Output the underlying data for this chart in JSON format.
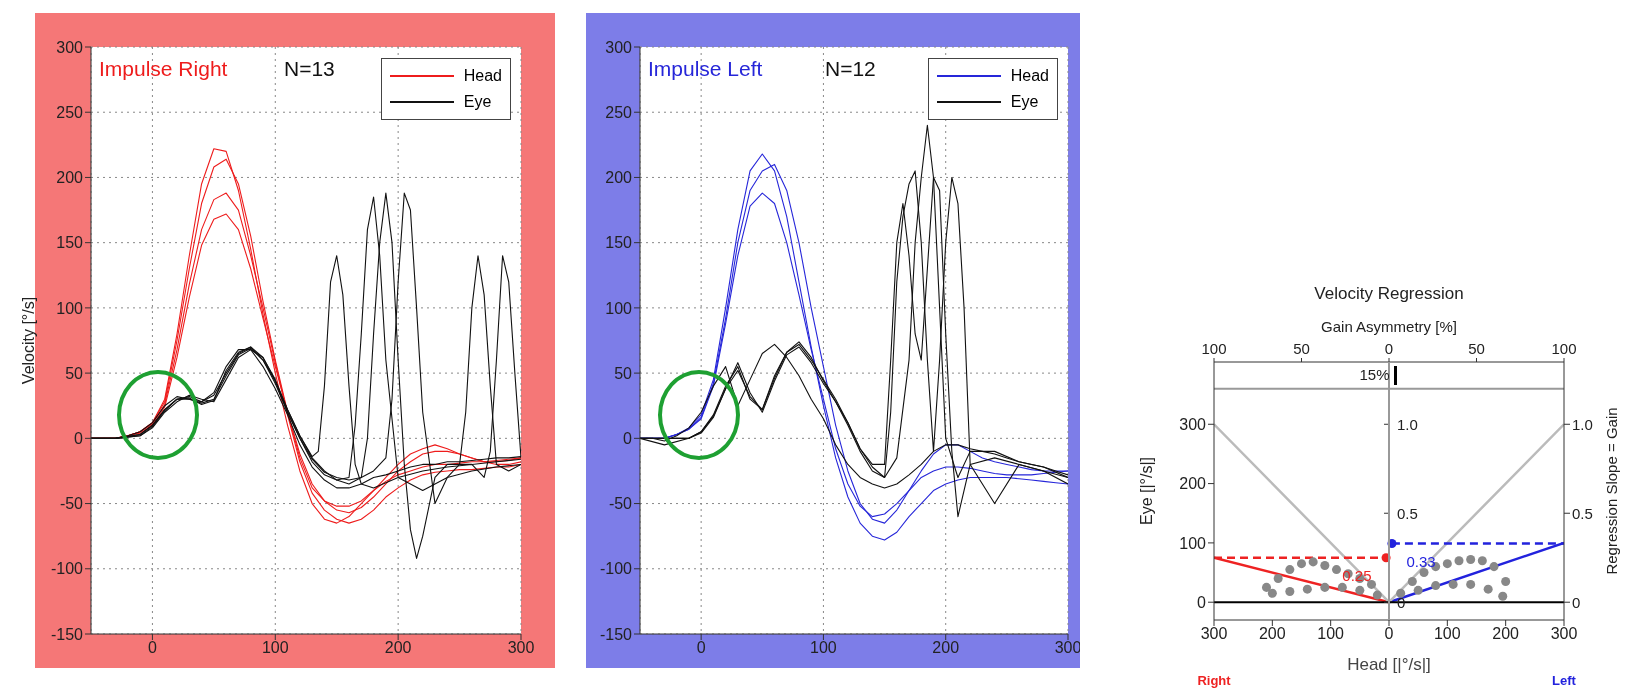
{
  "chart_data": [
    {
      "type": "line",
      "title": "Impulse Right",
      "annotations": [
        "N=13"
      ],
      "ylabel": "Velocity [°/s]",
      "xlim": [
        -50,
        300
      ],
      "xticks": [
        0,
        100,
        200,
        300
      ],
      "ylim": [
        -150,
        300
      ],
      "yticks": [
        -150,
        -100,
        -50,
        0,
        50,
        100,
        150,
        200,
        250,
        300
      ],
      "grid": true,
      "legend": "top right",
      "marker": "none",
      "x": [
        -50,
        -40,
        -30,
        -20,
        -10,
        0,
        10,
        20,
        30,
        40,
        50,
        60,
        70,
        80,
        90,
        100,
        110,
        120,
        130,
        140,
        150,
        160,
        170,
        180,
        190,
        200,
        210,
        220,
        230,
        240,
        250,
        260,
        270,
        280,
        290,
        300
      ],
      "series": [
        {
          "name": "Head",
          "color": "#ee1c1c",
          "values": [
            0,
            0,
            0,
            2,
            5,
            12,
            30,
            80,
            140,
            195,
            222,
            220,
            190,
            145,
            95,
            50,
            10,
            -25,
            -50,
            -62,
            -65,
            -60,
            -50,
            -40,
            -33,
            -28,
            -25,
            -22,
            -20,
            -20,
            -19,
            -18,
            -18,
            -17,
            -16,
            -15
          ]
        },
        {
          "color": "#ee1c1c",
          "values": [
            0,
            0,
            0,
            2,
            5,
            12,
            28,
            75,
            130,
            180,
            208,
            214,
            195,
            155,
            105,
            60,
            20,
            -15,
            -38,
            -48,
            -52,
            -52,
            -48,
            -40,
            -30,
            -20,
            -12,
            -8,
            -5,
            -8,
            -12,
            -15,
            -18,
            -18,
            -17,
            -15
          ]
        },
        {
          "color": "#ee1c1c",
          "values": [
            0,
            0,
            0,
            2,
            5,
            11,
            26,
            68,
            118,
            160,
            183,
            188,
            175,
            140,
            100,
            58,
            18,
            -18,
            -42,
            -55,
            -62,
            -65,
            -62,
            -55,
            -45,
            -38,
            -32,
            -28,
            -26,
            -25,
            -24,
            -24,
            -23,
            -22,
            -22,
            -20
          ]
        },
        {
          "color": "#ee1c1c",
          "values": [
            0,
            0,
            0,
            2,
            4,
            10,
            24,
            62,
            108,
            148,
            168,
            172,
            160,
            130,
            92,
            55,
            20,
            -12,
            -35,
            -48,
            -55,
            -57,
            -53,
            -45,
            -35,
            -25,
            -18,
            -12,
            -10,
            -10,
            -12,
            -15,
            -18,
            -20,
            -20,
            -18
          ]
        },
        {
          "name": "Eye",
          "color": "#111111",
          "values": [
            0,
            0,
            0,
            2,
            5,
            12,
            25,
            32,
            30,
            28,
            35,
            55,
            68,
            68,
            55,
            38,
            18,
            -5,
            -22,
            -32,
            -38,
            -38,
            -35,
            -30,
            -28,
            -25,
            -22,
            -20,
            -20,
            -18,
            -18,
            -17,
            -16,
            -15,
            -15,
            -14
          ]
        },
        {
          "color": "#111111",
          "x": [
            -50,
            -30,
            -10,
            0,
            10,
            20,
            30,
            40,
            50,
            60,
            70,
            80,
            90,
            100,
            110,
            120,
            130,
            140,
            150,
            160,
            165,
            170,
            175,
            180,
            185,
            190,
            200,
            220,
            240,
            260,
            280,
            300
          ],
          "values": [
            0,
            0,
            3,
            10,
            22,
            30,
            32,
            28,
            33,
            50,
            65,
            70,
            60,
            42,
            20,
            0,
            -18,
            -28,
            -32,
            -30,
            10,
            80,
            160,
            185,
            140,
            60,
            -30,
            -40,
            -30,
            -25,
            -22,
            -20
          ]
        },
        {
          "color": "#111111",
          "x": [
            -50,
            -30,
            -10,
            0,
            10,
            20,
            30,
            40,
            50,
            60,
            70,
            80,
            90,
            100,
            110,
            120,
            130,
            140,
            150,
            160,
            170,
            175,
            180,
            185,
            190,
            195,
            200,
            205,
            210,
            215,
            220,
            230,
            240,
            260,
            280,
            300
          ],
          "values": [
            0,
            0,
            2,
            8,
            20,
            28,
            33,
            30,
            28,
            45,
            62,
            68,
            62,
            45,
            22,
            2,
            -15,
            -25,
            -32,
            -35,
            -30,
            0,
            80,
            150,
            188,
            150,
            60,
            -20,
            -70,
            -92,
            -75,
            -30,
            -20,
            -20,
            -18,
            -16
          ]
        },
        {
          "color": "#111111",
          "x": [
            -50,
            -30,
            -10,
            0,
            10,
            20,
            30,
            40,
            50,
            60,
            70,
            80,
            90,
            100,
            110,
            120,
            130,
            140,
            150,
            160,
            170,
            180,
            190,
            195,
            200,
            205,
            210,
            215,
            220,
            230,
            240,
            250,
            255,
            260,
            265,
            270,
            275,
            280,
            290,
            300
          ],
          "values": [
            0,
            0,
            2,
            9,
            21,
            30,
            30,
            27,
            30,
            48,
            64,
            69,
            60,
            44,
            20,
            0,
            -16,
            -26,
            -30,
            -32,
            -30,
            -25,
            -15,
            30,
            120,
            188,
            175,
            100,
            20,
            -50,
            -30,
            -20,
            20,
            100,
            140,
            110,
            40,
            -20,
            -25,
            -20
          ]
        },
        {
          "color": "#111111",
          "x": [
            -50,
            -30,
            -10,
            0,
            10,
            20,
            30,
            40,
            50,
            60,
            70,
            80,
            90,
            100,
            110,
            120,
            130,
            135,
            140,
            145,
            150,
            155,
            160,
            165,
            170,
            180,
            200,
            220,
            240,
            260,
            270,
            275,
            280,
            285,
            290,
            295,
            300
          ],
          "values": [
            0,
            0,
            3,
            10,
            22,
            30,
            31,
            26,
            29,
            52,
            66,
            70,
            62,
            44,
            22,
            2,
            -14,
            -10,
            40,
            120,
            140,
            110,
            40,
            -20,
            -35,
            -38,
            -30,
            -25,
            -22,
            -20,
            -30,
            -10,
            60,
            140,
            120,
            50,
            -15
          ]
        }
      ]
    },
    {
      "type": "line",
      "title": "Impulse Left",
      "annotations": [
        "N=12"
      ],
      "xlim": [
        -50,
        300
      ],
      "xticks": [
        0,
        100,
        200,
        300
      ],
      "ylim": [
        -150,
        300
      ],
      "yticks": [
        -150,
        -100,
        -50,
        0,
        50,
        100,
        150,
        200,
        250,
        300
      ],
      "grid": true,
      "legend": "top right",
      "marker": "none",
      "x": [
        -50,
        -40,
        -30,
        -20,
        -10,
        0,
        10,
        20,
        30,
        40,
        50,
        60,
        70,
        80,
        90,
        100,
        110,
        120,
        130,
        140,
        150,
        160,
        170,
        180,
        190,
        200,
        210,
        220,
        230,
        240,
        250,
        260,
        270,
        280,
        290,
        300
      ],
      "series": [
        {
          "name": "Head",
          "color": "#2626d9",
          "values": [
            0,
            0,
            0,
            3,
            8,
            18,
            45,
            100,
            160,
            205,
            218,
            205,
            170,
            120,
            70,
            25,
            -15,
            -45,
            -65,
            -75,
            -78,
            -72,
            -60,
            -50,
            -40,
            -35,
            -32,
            -30,
            -30,
            -30,
            -30,
            -31,
            -32,
            -33,
            -34,
            -35
          ]
        },
        {
          "color": "#2626d9",
          "values": [
            0,
            0,
            0,
            3,
            7,
            16,
            42,
            92,
            150,
            190,
            205,
            210,
            190,
            150,
            100,
            55,
            10,
            -25,
            -50,
            -62,
            -65,
            -55,
            -40,
            -25,
            -12,
            -5,
            -5,
            -10,
            -15,
            -18,
            -20,
            -22,
            -24,
            -25,
            -25,
            -25
          ]
        },
        {
          "color": "#2626d9",
          "values": [
            0,
            0,
            0,
            3,
            7,
            15,
            40,
            88,
            140,
            178,
            188,
            180,
            150,
            110,
            68,
            30,
            -8,
            -35,
            -52,
            -60,
            -58,
            -50,
            -40,
            -30,
            -25,
            -22,
            -22,
            -23,
            -25,
            -27,
            -28,
            -28,
            -28,
            -27,
            -26,
            -25
          ]
        },
        {
          "name": "Eye",
          "color": "#111111",
          "values": [
            0,
            0,
            -2,
            2,
            8,
            20,
            40,
            55,
            25,
            45,
            65,
            72,
            62,
            48,
            30,
            15,
            -5,
            -20,
            -30,
            -35,
            -38,
            -35,
            -28,
            -20,
            -10,
            -5,
            -5,
            -8,
            -10,
            -12,
            -15,
            -18,
            -20,
            -22,
            -25,
            -28
          ]
        },
        {
          "color": "#111111",
          "x": [
            -50,
            -30,
            -10,
            0,
            10,
            20,
            30,
            40,
            50,
            60,
            70,
            80,
            90,
            100,
            110,
            120,
            130,
            140,
            150,
            160,
            170,
            175,
            180,
            185,
            190,
            195,
            200,
            210,
            220,
            240,
            260,
            280,
            300
          ],
          "values": [
            0,
            0,
            0,
            5,
            18,
            40,
            55,
            30,
            22,
            48,
            66,
            72,
            60,
            45,
            30,
            12,
            -8,
            -22,
            -30,
            -15,
            60,
            150,
            200,
            240,
            200,
            100,
            0,
            -30,
            -10,
            -10,
            -18,
            -22,
            -30
          ]
        },
        {
          "color": "#111111",
          "x": [
            -50,
            -30,
            -10,
            0,
            10,
            20,
            30,
            40,
            50,
            60,
            70,
            80,
            90,
            100,
            110,
            120,
            130,
            140,
            150,
            155,
            160,
            165,
            170,
            175,
            180,
            185,
            190,
            195,
            200,
            205,
            210,
            215,
            220,
            240,
            260,
            280,
            300
          ],
          "values": [
            0,
            0,
            0,
            4,
            16,
            38,
            58,
            35,
            20,
            44,
            64,
            70,
            58,
            42,
            28,
            10,
            -10,
            -25,
            -30,
            20,
            120,
            170,
            195,
            205,
            150,
            60,
            -10,
            60,
            150,
            200,
            180,
            100,
            -20,
            -50,
            -20,
            -25,
            -35
          ]
        },
        {
          "color": "#111111",
          "x": [
            -50,
            -30,
            -10,
            0,
            10,
            20,
            30,
            40,
            50,
            60,
            70,
            80,
            90,
            100,
            110,
            120,
            130,
            140,
            150,
            155,
            160,
            165,
            170,
            175,
            180,
            185,
            190,
            195,
            200,
            205,
            210,
            220,
            240,
            260,
            280,
            300
          ],
          "values": [
            0,
            -5,
            0,
            5,
            17,
            38,
            52,
            32,
            22,
            46,
            66,
            74,
            62,
            44,
            28,
            12,
            -8,
            -20,
            -20,
            60,
            150,
            180,
            140,
            80,
            60,
            130,
            200,
            190,
            80,
            -10,
            -60,
            -20,
            -15,
            -20,
            -25,
            -30
          ]
        }
      ]
    },
    {
      "type": "line",
      "title": "Velocity Regression",
      "xlabel": "Head [|°/s|]",
      "ylabel": "Eye [|°/s|]",
      "y2label": "Regression Slope = Gain",
      "x2label": "Gain Asymmetry [%]",
      "xlim": [
        -300,
        300
      ],
      "xticks": [
        {
          "value": -300,
          "label": "300"
        },
        {
          "value": -200,
          "label": "200"
        },
        {
          "value": -100,
          "label": "100"
        },
        0,
        100,
        200,
        300
      ],
      "x2lim": [
        -100,
        100
      ],
      "x2ticks": [
        {
          "value": -100,
          "label": "100"
        },
        {
          "value": -50,
          "label": "50"
        },
        0,
        50,
        100
      ],
      "ylim": [
        -30,
        405
      ],
      "yticks": [
        0,
        100,
        200,
        300
      ],
      "y2lim": [
        -0.1,
        1.35
      ],
      "y2ticks": [
        0,
        0.5,
        {
          "value": 1,
          "label": "1.0"
        }
      ],
      "y3lim": [
        -0.1,
        1.35
      ],
      "y3ticks": [
        0,
        0.5,
        {
          "value": 1,
          "label": "1.0"
        }
      ],
      "marker": "none",
      "ref_lines": [
        {
          "axis": "y",
          "value": 0,
          "color": "#000000"
        },
        {
          "axis": "y",
          "value": 360,
          "color": "#999999"
        }
      ],
      "annotations": [
        "15%",
        "Right",
        "Left"
      ],
      "series": [
        {
          "type": "scatter",
          "color": "#888888",
          "marker": "circle",
          "x": [
            -210,
            -190,
            -170,
            -150,
            -130,
            -110,
            -90,
            -70,
            -50,
            -30,
            -200,
            -170,
            -140,
            -110,
            -80,
            -50,
            -20
          ],
          "values": [
            25,
            40,
            55,
            65,
            68,
            62,
            55,
            48,
            40,
            30,
            15,
            18,
            22,
            25,
            25,
            20,
            12
          ]
        },
        {
          "type": "scatter",
          "color": "#888888",
          "marker": "circle",
          "x": [
            20,
            40,
            60,
            80,
            100,
            120,
            140,
            160,
            180,
            200,
            50,
            80,
            110,
            140,
            170,
            195
          ],
          "values": [
            15,
            35,
            50,
            60,
            65,
            70,
            72,
            70,
            60,
            35,
            20,
            28,
            30,
            30,
            22,
            10
          ]
        },
        {
          "color": "#ee2222",
          "x": [
            -300,
            0
          ],
          "values": [
            75,
            0
          ]
        },
        {
          "color": "#2222dd",
          "x": [
            0,
            300
          ],
          "values": [
            0,
            100
          ]
        },
        {
          "color": "#bbbbbb",
          "x": [
            -300,
            0,
            300
          ],
          "values": [
            300,
            0,
            300
          ]
        },
        {
          "color": "#ee2222",
          "axis": "y2",
          "line_style": "dashed",
          "x": [
            -300,
            -5
          ],
          "values": [
            0.25,
            0.25
          ]
        },
        {
          "color": "#2222dd",
          "axis": "y2",
          "line_style": "dashed",
          "x": [
            5,
            300
          ],
          "values": [
            0.33,
            0.33
          ]
        },
        {
          "type": "scatter",
          "color": "#ee2222",
          "axis": "y2",
          "marker": "circle",
          "x": [
            -5
          ],
          "values": [
            0.25
          ],
          "value_labels": [
            "0.25"
          ]
        },
        {
          "type": "scatter",
          "color": "#2222dd",
          "axis": "y2",
          "marker": "circle",
          "x": [
            5
          ],
          "values": [
            0.33
          ],
          "value_labels": [
            "0.33"
          ]
        }
      ]
    }
  ]
}
